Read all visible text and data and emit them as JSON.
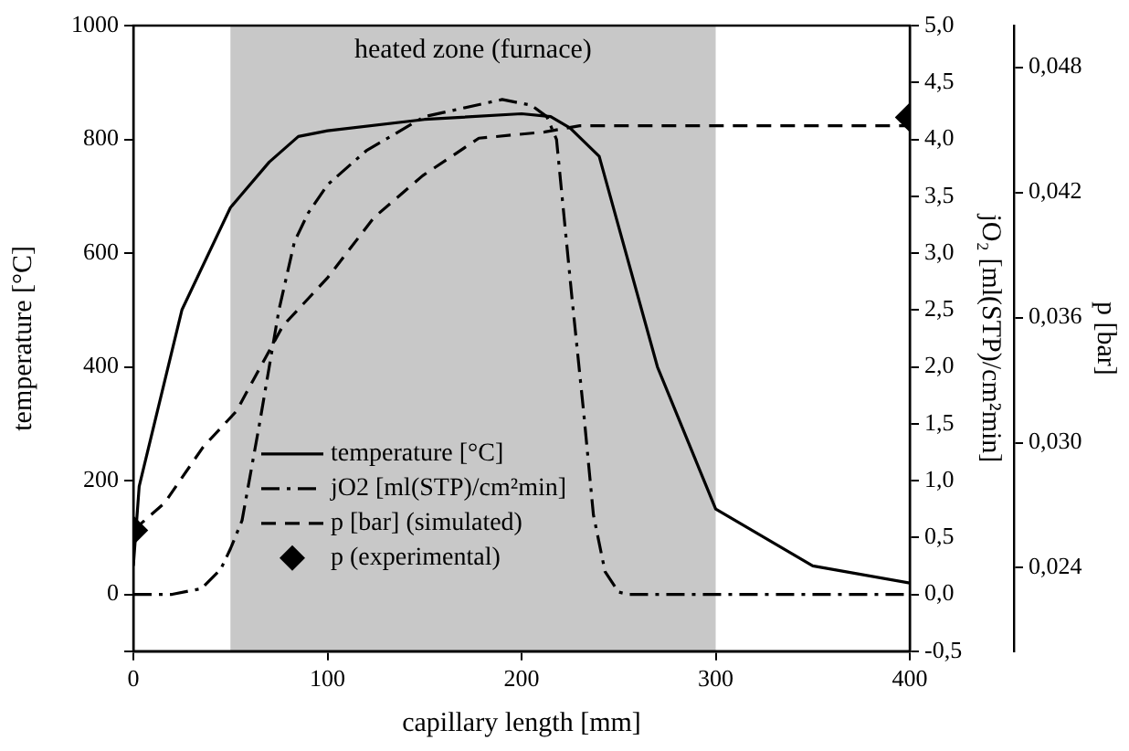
{
  "chart_data": {
    "type": "line",
    "xlabel": "capillary length [mm]",
    "ylabel": "temperature [°C]",
    "y2label": "jO₂ [ml(STP)/cm²min]",
    "y3label": "p [bar]",
    "xlim": [
      0,
      400
    ],
    "xticks": [
      0,
      100,
      200,
      300,
      400
    ],
    "ylim": [
      -100,
      1000
    ],
    "yticks": [
      {
        "value": -100,
        "label": null
      },
      0,
      200,
      400,
      600,
      800,
      1000
    ],
    "y2lim": [
      -0.5,
      5.0
    ],
    "y2ticks": [
      {
        "value": -0.5,
        "label": "-0,5"
      },
      {
        "value": 0,
        "label": "0,0"
      },
      {
        "value": 0.5,
        "label": "0,5"
      },
      {
        "value": 1,
        "label": "1,0"
      },
      {
        "value": 1.5,
        "label": "1,5"
      },
      {
        "value": 2,
        "label": "2,0"
      },
      {
        "value": 2.5,
        "label": "2,5"
      },
      {
        "value": 3,
        "label": "3,0"
      },
      {
        "value": 3.5,
        "label": "3,5"
      },
      {
        "value": 4,
        "label": "4,0"
      },
      {
        "value": 4.5,
        "label": "4,5"
      },
      {
        "value": 5,
        "label": "5,0"
      }
    ],
    "y3lim": [
      0.02,
      0.05
    ],
    "y3ticks": [
      {
        "value": 0.024,
        "label": "0,024"
      },
      {
        "value": 0.03,
        "label": "0,030"
      },
      {
        "value": 0.036,
        "label": "0,036"
      },
      {
        "value": 0.042,
        "label": "0,042"
      },
      {
        "value": 0.048,
        "label": "0,048"
      }
    ],
    "grid": false,
    "legend": "bottom left",
    "bands": [
      {
        "axis": "x",
        "from": 50,
        "to": 300,
        "label": "heated zone (furnace)",
        "color": "#c8c8c8"
      }
    ],
    "series": [
      {
        "name": "temperature [°C]",
        "type": "line",
        "color": "#000000",
        "line_style": "solid",
        "marker": "none",
        "x": [
          0,
          3,
          25,
          50,
          55,
          70,
          85,
          100,
          150,
          200,
          215,
          225,
          240,
          270,
          300,
          350,
          400
        ],
        "values": [
          50,
          190,
          500,
          680,
          700,
          760,
          805,
          815,
          835,
          845,
          840,
          820,
          770,
          400,
          150,
          50,
          20
        ]
      },
      {
        "name": "jO2 [ml(STP)/cm²min]",
        "type": "line",
        "axis": "y2",
        "color": "#000000",
        "line_style": "dashdot",
        "marker": "none",
        "x": [
          0,
          20,
          35,
          45,
          50,
          56,
          65,
          75,
          83,
          90,
          100,
          120,
          150,
          190,
          205,
          213,
          218,
          226,
          232,
          237,
          243,
          250,
          255,
          400
        ],
        "values": [
          0,
          0,
          0.05,
          0.22,
          0.4,
          0.65,
          1.5,
          2.5,
          3.1,
          3.35,
          3.6,
          3.9,
          4.2,
          4.35,
          4.3,
          4.2,
          4.0,
          2.6,
          1.6,
          0.7,
          0.2,
          0.02,
          0,
          0
        ]
      },
      {
        "name": "p [bar] (simulated)",
        "type": "line",
        "axis": "y3",
        "color": "#000000",
        "line_style": "dashed",
        "marker": "none",
        "x": [
          0,
          16,
          36,
          53,
          77,
          100,
          124,
          149,
          178,
          212,
          230,
          400
        ],
        "values": [
          0.0258,
          0.0271,
          0.0298,
          0.0315,
          0.0356,
          0.0379,
          0.0408,
          0.0428,
          0.0446,
          0.0449,
          0.0452,
          0.0452
        ]
      },
      {
        "name": "p (experimental)",
        "type": "scatter",
        "axis": "y3",
        "color": "#000000",
        "marker": "diamond",
        "x": [
          0,
          400
        ],
        "values": [
          0.0258,
          0.0456
        ]
      }
    ]
  }
}
